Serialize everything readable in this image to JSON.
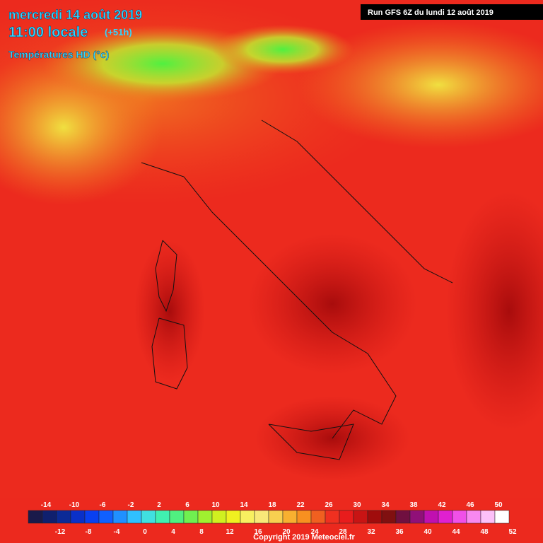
{
  "header": {
    "date": "mercredi 14 août 2019",
    "time": "11:00 locale",
    "offset": "(+51h)",
    "product": "Températures HD (°c)",
    "run": "Run GFS 6Z du lundi 12 août 2019"
  },
  "legend": {
    "values": [
      -14,
      -12,
      -10,
      -8,
      -6,
      -4,
      -2,
      0,
      2,
      4,
      6,
      8,
      10,
      12,
      14,
      16,
      18,
      20,
      22,
      24,
      26,
      28,
      30,
      32,
      34,
      36,
      38,
      40,
      42,
      44,
      46,
      48,
      50,
      52
    ],
    "colors": [
      "#1a1a4a",
      "#10206e",
      "#0c2a96",
      "#0a30c8",
      "#0a40f0",
      "#1060ff",
      "#2090ff",
      "#30c0ff",
      "#40e0e0",
      "#40f0b0",
      "#50f080",
      "#70f050",
      "#a0f030",
      "#d0f020",
      "#f0f020",
      "#f8f060",
      "#f8e878",
      "#f8d050",
      "#f8b030",
      "#f89020",
      "#f06020",
      "#f03020",
      "#e81c1c",
      "#c81414",
      "#a00c0c",
      "#801010",
      "#701040",
      "#901078",
      "#c010b0",
      "#e020d0",
      "#f050e8",
      "#f888f0",
      "#fcc0f8",
      "#ffffff"
    ]
  },
  "copyright": "Copyright 2019 Meteociel.fr"
}
